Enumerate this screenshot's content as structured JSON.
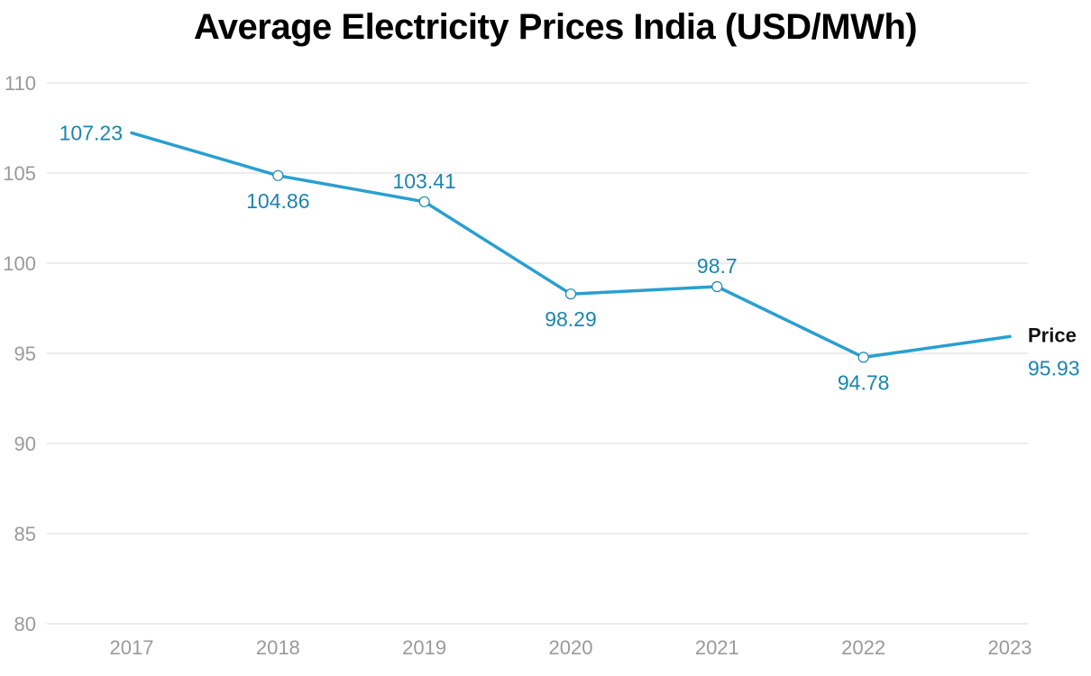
{
  "chart_data": {
    "type": "line",
    "title": "Average Electricity Prices India (USD/MWh)",
    "xlabel": "",
    "ylabel": "",
    "categories": [
      "2017",
      "2018",
      "2019",
      "2020",
      "2021",
      "2022",
      "2023"
    ],
    "series": [
      {
        "name": "Price",
        "values": [
          107.23,
          104.86,
          103.41,
          98.29,
          98.7,
          94.78,
          95.93
        ],
        "labels": [
          "107.23",
          "104.86",
          "103.41",
          "98.29",
          "98.7",
          "94.78",
          "95.93"
        ]
      }
    ],
    "ylim": [
      80,
      110
    ],
    "yticks": [
      80,
      85,
      90,
      95,
      100,
      105,
      110
    ],
    "grid": true,
    "legend": "inline-end-label",
    "colors": {
      "line": "#2a9fd0",
      "label": "#1a86ad",
      "grid": "#e0e0e0",
      "tick": "#9a9a9a"
    }
  }
}
